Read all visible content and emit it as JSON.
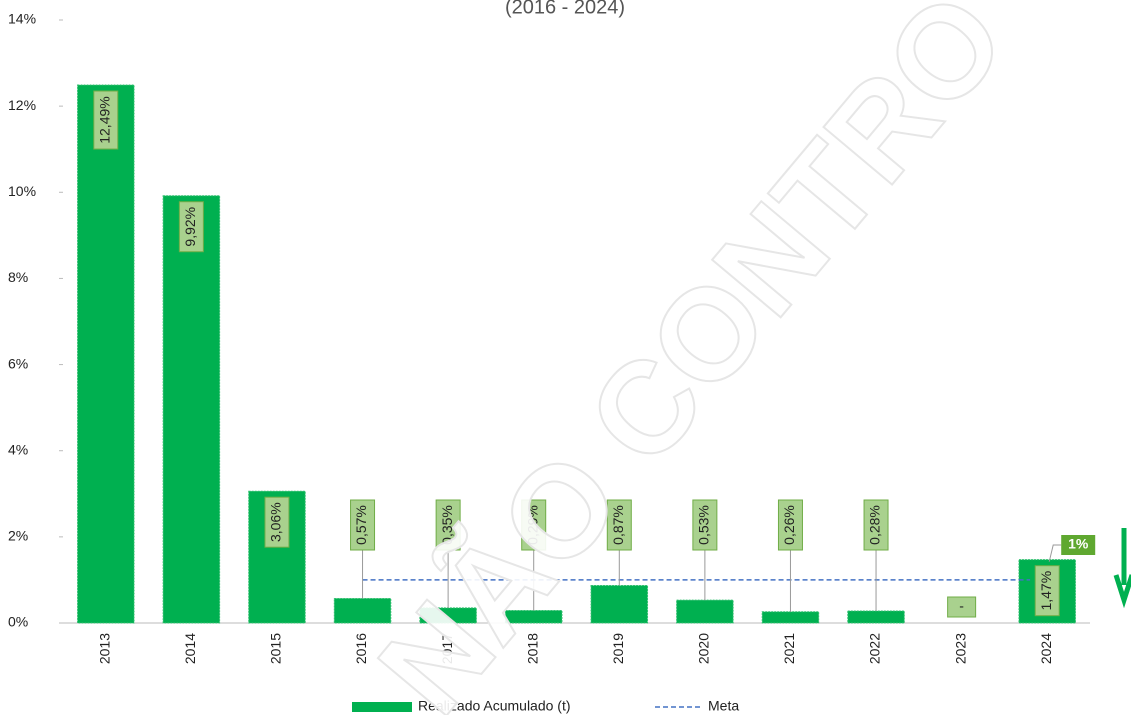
{
  "chart_data": {
    "type": "bar",
    "title": "(2016 - 2024)",
    "categories": [
      "2013",
      "2014",
      "2015",
      "2016",
      "2017",
      "2018",
      "2019",
      "2020",
      "2021",
      "2022",
      "2023",
      "2024"
    ],
    "series": [
      {
        "name": "Realizado Acumulado (t)",
        "color": "#00b050",
        "values": [
          12.49,
          9.92,
          3.06,
          0.57,
          0.35,
          0.29,
          0.87,
          0.53,
          0.26,
          0.28,
          0,
          1.47
        ],
        "value_labels": [
          "12,49%",
          "9,92%",
          "3,06%",
          "0,57%",
          "0,35%",
          "0,29%",
          "0,87%",
          "0,53%",
          "0,26%",
          "0,28%",
          "-",
          "1,47%"
        ]
      },
      {
        "name": "Meta",
        "color": "#4472c4",
        "type": "line",
        "values": [
          null,
          null,
          null,
          1,
          1,
          1,
          1,
          1,
          1,
          1,
          1,
          1
        ]
      }
    ],
    "annotation": "1%",
    "watermark": "NÃO CONTRO",
    "ylim": [
      0,
      14
    ],
    "yticks": [
      {
        "value": 0,
        "label": "0%"
      },
      {
        "value": 2,
        "label": "2%"
      },
      {
        "value": 4,
        "label": "4%"
      },
      {
        "value": 6,
        "label": "6%"
      },
      {
        "value": 8,
        "label": "8%"
      },
      {
        "value": 10,
        "label": "10%"
      },
      {
        "value": 12,
        "label": "12%"
      },
      {
        "value": 14,
        "label": "14%"
      }
    ]
  }
}
